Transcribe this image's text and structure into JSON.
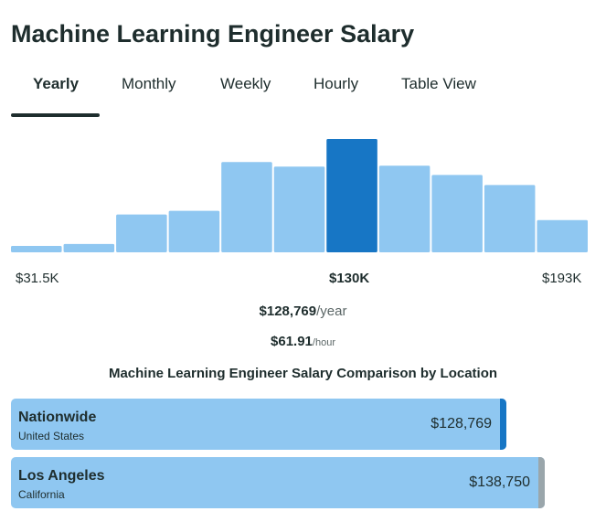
{
  "title": "Machine Learning Engineer Salary",
  "tabs": [
    {
      "label": "Yearly",
      "active": true
    },
    {
      "label": "Monthly",
      "active": false
    },
    {
      "label": "Weekly",
      "active": false
    },
    {
      "label": "Hourly",
      "active": false
    },
    {
      "label": "Table View",
      "active": false
    }
  ],
  "chart_data": {
    "type": "bar",
    "values": [
      7,
      9,
      41,
      45,
      98,
      93,
      123,
      94,
      84,
      73,
      35
    ],
    "highlight_index": 6,
    "colors": {
      "bar": "#8fc7f1",
      "highlight": "#1776c5"
    },
    "range_labels": {
      "min": "$31.5K",
      "mid": "$130K",
      "max": "$193K"
    }
  },
  "average": {
    "yearly_value": "$128,769",
    "yearly_unit": "/year",
    "hourly_value": "$61.91",
    "hourly_unit": "/hour"
  },
  "comparison": {
    "title": "Machine Learning Engineer Salary Comparison by Location",
    "locations": [
      {
        "name": "Nationwide",
        "sub": "United States",
        "value": "$128,769",
        "amount": 128769,
        "edge_color": "#1776c5"
      },
      {
        "name": "Los Angeles",
        "sub": "California",
        "value": "$138,750",
        "amount": 138750,
        "edge_color": "#9aa6ab"
      }
    ]
  }
}
